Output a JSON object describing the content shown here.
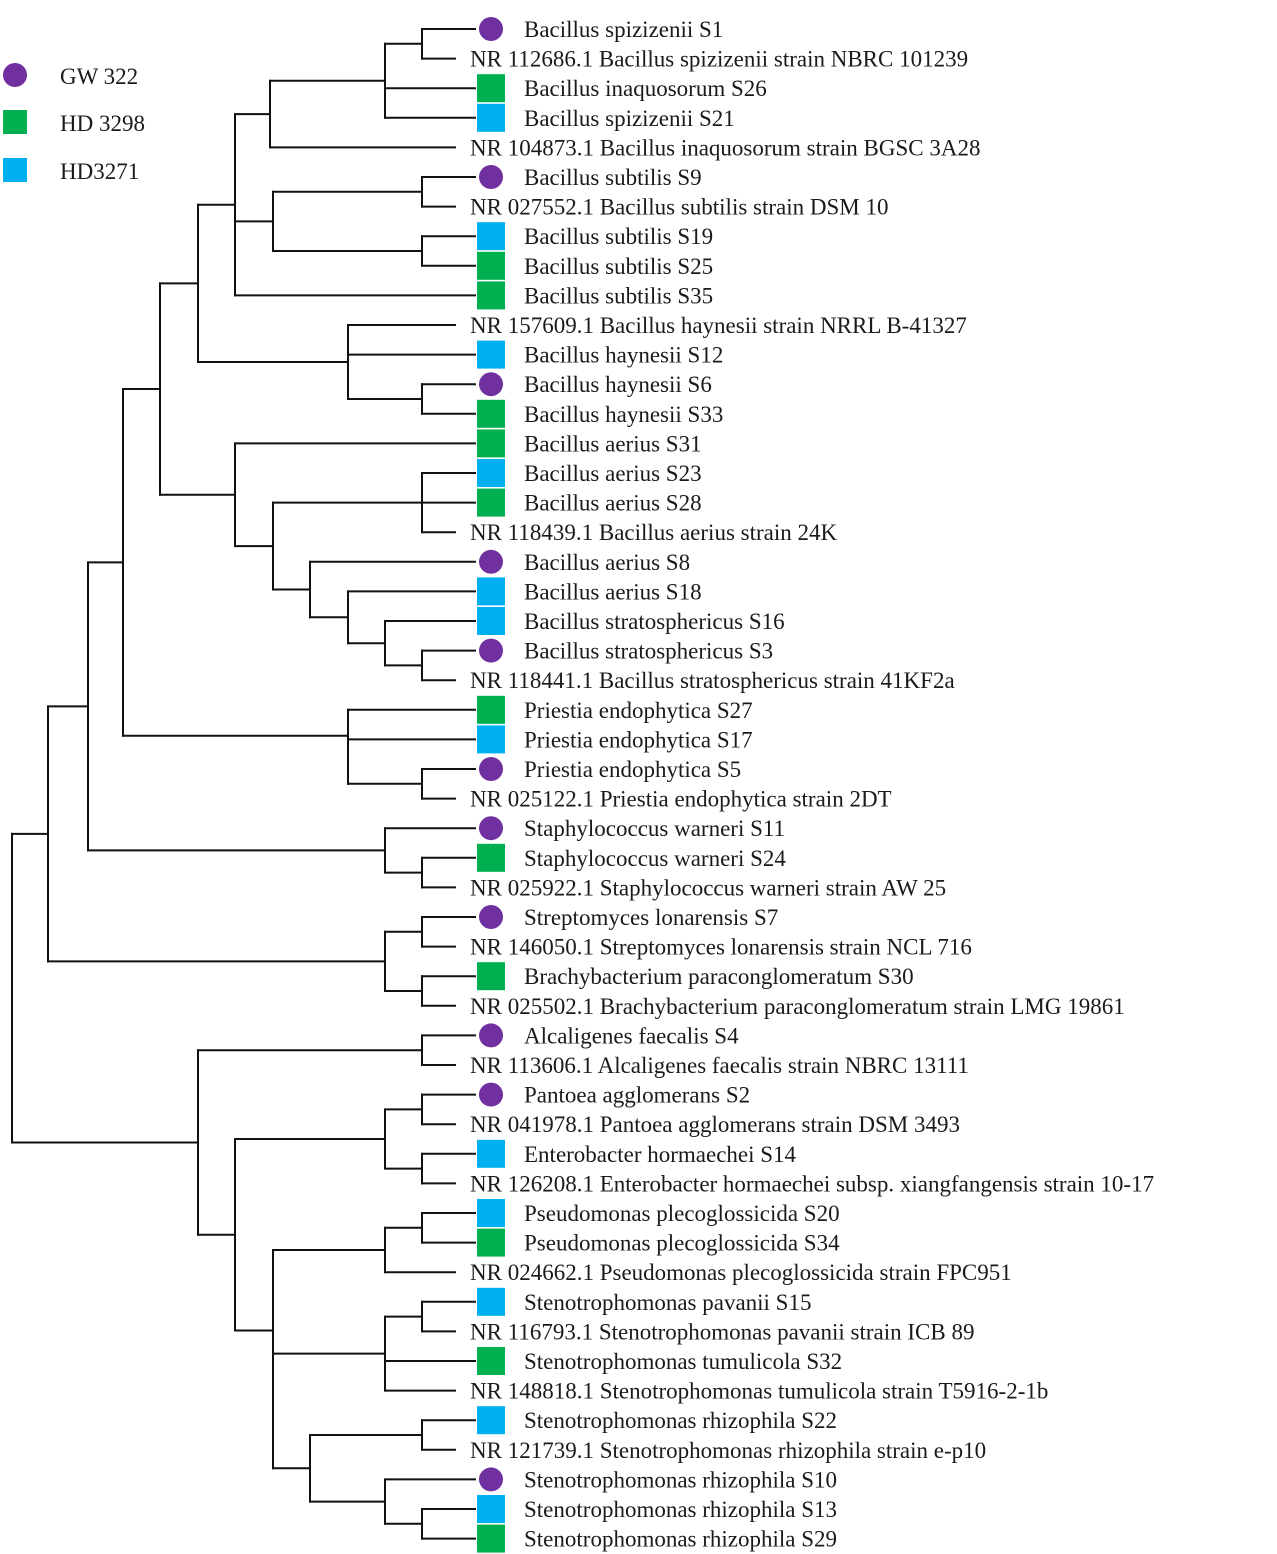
{
  "legend": [
    {
      "label": "GW 322",
      "shape": "circle",
      "color": "#7030a0"
    },
    {
      "label": "HD 3298",
      "shape": "square",
      "color": "#00b050"
    },
    {
      "label": "HD3271",
      "shape": "square",
      "color": "#00b0f0"
    }
  ],
  "marker_colors": {
    "GW 322": "#7030a0",
    "HD 3298": "#00b050",
    "HD3271": "#00b0f0"
  },
  "leaves": [
    {
      "label": "Bacillus spizizenii S1",
      "group": "GW 322"
    },
    {
      "label": "NR 112686.1 Bacillus spizizenii strain NBRC 101239",
      "group": null
    },
    {
      "label": "Bacillus inaquosorum S26",
      "group": "HD 3298"
    },
    {
      "label": "Bacillus spizizenii S21",
      "group": "HD3271"
    },
    {
      "label": "NR 104873.1 Bacillus inaquosorum strain BGSC 3A28",
      "group": null
    },
    {
      "label": "Bacillus subtilis S9",
      "group": "GW 322"
    },
    {
      "label": "NR 027552.1 Bacillus subtilis strain DSM 10",
      "group": null
    },
    {
      "label": "Bacillus subtilis S19",
      "group": "HD3271"
    },
    {
      "label": "Bacillus subtilis S25",
      "group": "HD 3298"
    },
    {
      "label": "Bacillus subtilis S35",
      "group": "HD 3298"
    },
    {
      "label": "NR 157609.1 Bacillus haynesii strain NRRL B-41327",
      "group": null
    },
    {
      "label": "Bacillus haynesii S12",
      "group": "HD3271"
    },
    {
      "label": "Bacillus haynesii S6",
      "group": "GW 322"
    },
    {
      "label": "Bacillus haynesii S33",
      "group": "HD 3298"
    },
    {
      "label": "Bacillus aerius S31",
      "group": "HD 3298"
    },
    {
      "label": "Bacillus aerius S23",
      "group": "HD3271"
    },
    {
      "label": "Bacillus aerius S28",
      "group": "HD 3298"
    },
    {
      "label": "NR 118439.1 Bacillus aerius strain 24K",
      "group": null
    },
    {
      "label": "Bacillus aerius S8",
      "group": "GW 322"
    },
    {
      "label": "Bacillus aerius S18",
      "group": "HD3271"
    },
    {
      "label": "Bacillus stratosphericus S16",
      "group": "HD3271"
    },
    {
      "label": "Bacillus stratosphericus S3",
      "group": "GW 322"
    },
    {
      "label": "NR 118441.1 Bacillus stratosphericus strain 41KF2a",
      "group": null
    },
    {
      "label": "Priestia endophytica S27",
      "group": "HD 3298"
    },
    {
      "label": "Priestia endophytica S17",
      "group": "HD3271"
    },
    {
      "label": "Priestia endophytica S5",
      "group": "GW 322"
    },
    {
      "label": "NR 025122.1 Priestia endophytica strain 2DT",
      "group": null
    },
    {
      "label": "Staphylococcus warneri S11",
      "group": "GW 322"
    },
    {
      "label": "Staphylococcus warneri S24",
      "group": "HD 3298"
    },
    {
      "label": "NR 025922.1 Staphylococcus warneri strain AW 25",
      "group": null
    },
    {
      "label": "Streptomyces lonarensis S7",
      "group": "GW 322"
    },
    {
      "label": "NR 146050.1 Streptomyces lonarensis strain NCL 716",
      "group": null
    },
    {
      "label": "Brachybacterium paraconglomeratum S30",
      "group": "HD 3298"
    },
    {
      "label": "NR 025502.1 Brachybacterium paraconglomeratum strain LMG 19861",
      "group": null
    },
    {
      "label": "Alcaligenes faecalis S4",
      "group": "GW 322"
    },
    {
      "label": "NR 113606.1 Alcaligenes faecalis strain NBRC 13111",
      "group": null
    },
    {
      "label": "Pantoea agglomerans S2",
      "group": "GW 322"
    },
    {
      "label": "NR 041978.1 Pantoea agglomerans strain DSM 3493",
      "group": null
    },
    {
      "label": "Enterobacter hormaechei S14",
      "group": "HD3271"
    },
    {
      "label": "NR 126208.1 Enterobacter hormaechei subsp. xiangfangensis strain 10-17",
      "group": null
    },
    {
      "label": "Pseudomonas plecoglossicida S20",
      "group": "HD3271"
    },
    {
      "label": "Pseudomonas plecoglossicida S34",
      "group": "HD 3298"
    },
    {
      "label": "NR 024662.1 Pseudomonas plecoglossicida strain FPC951",
      "group": null
    },
    {
      "label": "Stenotrophomonas pavanii S15",
      "group": "HD3271"
    },
    {
      "label": "NR 116793.1 Stenotrophomonas pavanii strain ICB 89",
      "group": null
    },
    {
      "label": "Stenotrophomonas tumulicola S32",
      "group": "HD 3298"
    },
    {
      "label": "NR 148818.1 Stenotrophomonas tumulicola strain T5916-2-1b",
      "group": null
    },
    {
      "label": "Stenotrophomonas rhizophila S22",
      "group": "HD3271"
    },
    {
      "label": "NR 121739.1 Stenotrophomonas rhizophila strain e-p10",
      "group": null
    },
    {
      "label": "Stenotrophomonas rhizophila S10",
      "group": "GW 322"
    },
    {
      "label": "Stenotrophomonas rhizophila S13",
      "group": "HD3271"
    },
    {
      "label": "Stenotrophomonas rhizophila S29",
      "group": "HD 3298"
    }
  ]
}
